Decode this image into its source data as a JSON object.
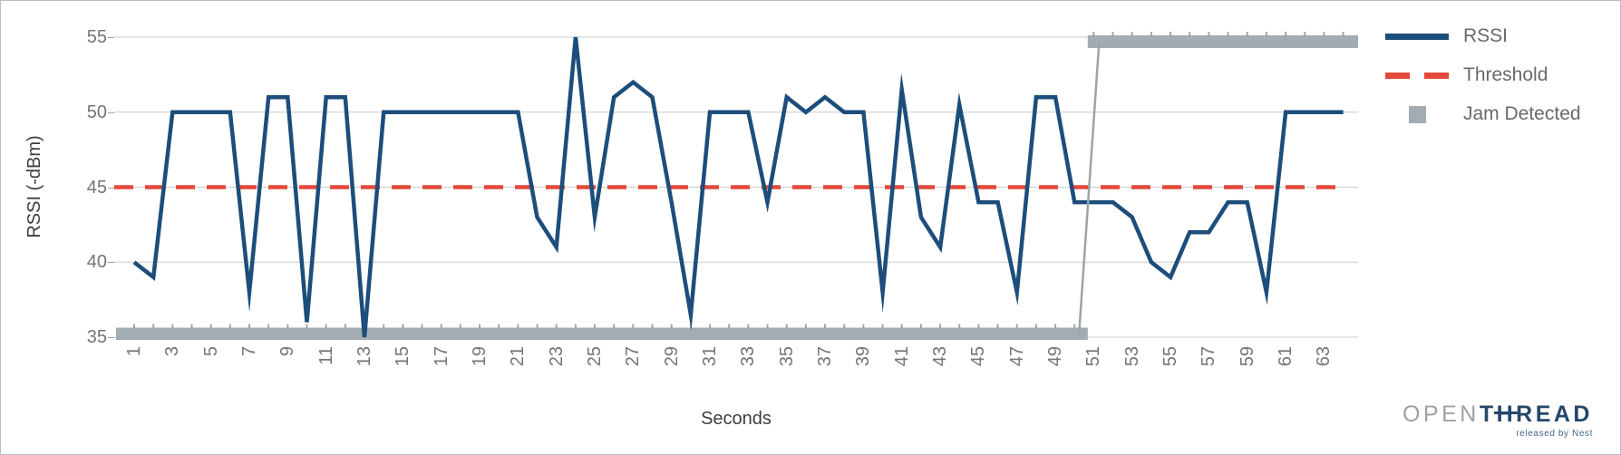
{
  "chart_data": {
    "type": "line",
    "title": "",
    "xlabel": "Seconds",
    "ylabel": "RSSI (-dBm)",
    "xlim": [
      1,
      64
    ],
    "ylim": [
      35,
      55
    ],
    "grid": "horizontal",
    "legend_position": "right-top",
    "x_note": "one sample per second, seconds 1-64; only odd seconds labeled",
    "x_tick_labels": [
      "1",
      "3",
      "5",
      "7",
      "9",
      "11",
      "13",
      "15",
      "17",
      "19",
      "21",
      "23",
      "25",
      "27",
      "29",
      "31",
      "33",
      "35",
      "37",
      "39",
      "41",
      "43",
      "45",
      "47",
      "49",
      "51",
      "53",
      "55",
      "57",
      "59",
      "61",
      "63"
    ],
    "y_tick_values": [
      55,
      50,
      45,
      40,
      35
    ],
    "series": [
      {
        "name": "RSSI",
        "style": "solid-line",
        "color": "#1d4e7b",
        "values": [
          40,
          39,
          50,
          50,
          50,
          50,
          38,
          51,
          51,
          36,
          51,
          51,
          35,
          50,
          50,
          50,
          50,
          50,
          50,
          50,
          50,
          43,
          41,
          55,
          43,
          51,
          52,
          51,
          44,
          36.5,
          50,
          50,
          50,
          44,
          51,
          50,
          51,
          50,
          50,
          38,
          51.5,
          43,
          41,
          50.5,
          44,
          44,
          38,
          51,
          51,
          44,
          44,
          44,
          43,
          40,
          39,
          42,
          42,
          44,
          44,
          38,
          50,
          50,
          50,
          50
        ]
      },
      {
        "name": "Threshold",
        "style": "dashed-line",
        "color": "#e2493b",
        "value": 45
      },
      {
        "name": "Jam Detected",
        "style": "thick-bar",
        "color": "#a2acb2",
        "off_value": 35,
        "on_value": 55,
        "on_from_second": 51,
        "values_desc": "35 (no jam) for seconds 1-50, 55 (jam detected) for seconds 51-64"
      }
    ]
  },
  "legend": {
    "items": [
      {
        "label": "RSSI",
        "swatch": "line",
        "color": "#1d4e7b"
      },
      {
        "label": "Threshold",
        "swatch": "dashed-line",
        "color": "#e2493b"
      },
      {
        "label": "Jam Detected",
        "swatch": "square",
        "color": "#a2acb2"
      }
    ]
  },
  "branding": {
    "logo_prefix": "OPEN",
    "logo_suffix": "THREAD",
    "tagline": "released by Nest"
  }
}
